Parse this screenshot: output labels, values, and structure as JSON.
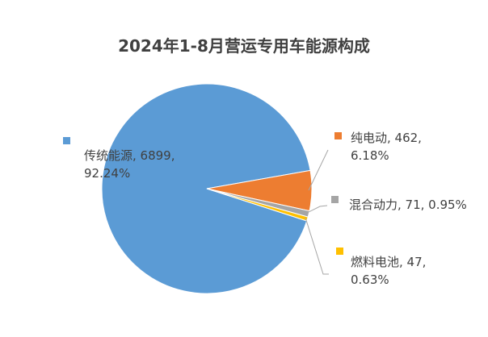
{
  "chart_data": {
    "type": "pie",
    "title": "2024年1-8月营运专用车能源构成",
    "values": [
      6899,
      462,
      71,
      47
    ],
    "value_labels": [
      "传统能源, 6899, 92.24%",
      "纯电动, 462, 6.18%",
      "混合动力, 71, 0.95%",
      "燃料电池, 47, 0.63%"
    ],
    "colors": [
      "#5b9bd5",
      "#ed7d31",
      "#a5a5a5",
      "#ffc000"
    ]
  }
}
